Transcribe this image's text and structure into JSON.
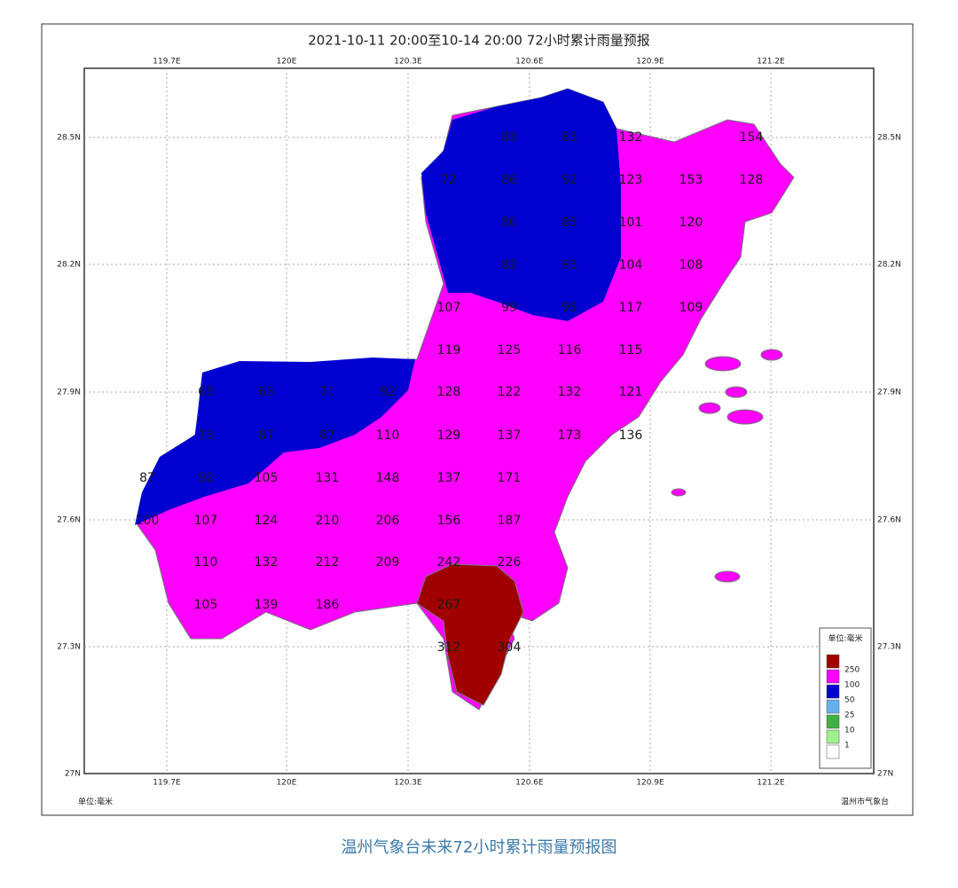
{
  "header": {
    "title": "2021-10-11 20:00至10-14 20:00 72小时累计雨量预报"
  },
  "axes": {
    "lon_ticks": [
      "119.7E",
      "120E",
      "120.3E",
      "120.6E",
      "120.9E",
      "121.2E"
    ],
    "lat_ticks": [
      "28.5N",
      "28.2N",
      "27.9N",
      "27.6N",
      "27.3N",
      "27N"
    ]
  },
  "stations": [
    83,
    83,
    132,
    154,
    72,
    86,
    92,
    123,
    153,
    128,
    80,
    85,
    101,
    120,
    82,
    93,
    104,
    108,
    107,
    99,
    95,
    117,
    109,
    119,
    125,
    116,
    115,
    63,
    63,
    71,
    92,
    128,
    122,
    132,
    121,
    73,
    87,
    87,
    110,
    129,
    137,
    173,
    136,
    87,
    92,
    105,
    131,
    148,
    137,
    171,
    100,
    107,
    124,
    210,
    206,
    156,
    187,
    110,
    132,
    212,
    209,
    242,
    226,
    105,
    139,
    186,
    267,
    312,
    304
  ],
  "legend": {
    "title": "单位:毫米",
    "colors": [
      "#a00000",
      "#ff00ff",
      "#0000d0",
      "#66b0f0",
      "#40b040",
      "#a0f090",
      "#ffffff"
    ],
    "levels": [
      250,
      100,
      50,
      25,
      10,
      1
    ]
  },
  "footer": {
    "left": "单位:毫米",
    "right": "温州市气象台"
  },
  "caption": "温州气象台未来72小时累计雨量预报图"
}
